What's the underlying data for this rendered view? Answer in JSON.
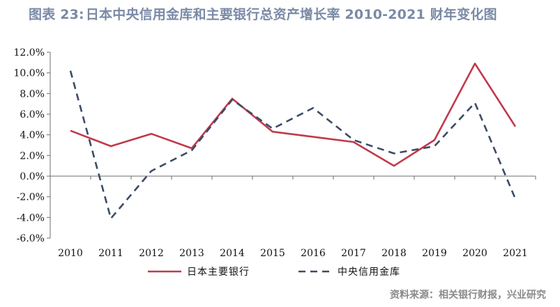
{
  "header": {
    "figure_label": "图表 23:",
    "title_text": "日本中央信用金库和主要银行总资产增长率 2010-2021 财年变化图"
  },
  "source": "资料来源：相关银行财报，兴业研究",
  "chart_data": {
    "type": "line",
    "title": "日本中央信用金库和主要银行总资产增长率 2010-2021 财年变化图",
    "xlabel": "",
    "ylabel": "",
    "categories": [
      "2010",
      "2011",
      "2012",
      "2013",
      "2014",
      "2015",
      "2016",
      "2017",
      "2018",
      "2019",
      "2020",
      "2021"
    ],
    "ylim": [
      -6.0,
      12.0
    ],
    "yticks": [
      -6.0,
      -4.0,
      -2.0,
      0.0,
      2.0,
      4.0,
      6.0,
      8.0,
      10.0,
      12.0
    ],
    "ytick_labels": [
      "-6.0%",
      "-4.0%",
      "-2.0%",
      "0.0%",
      "2.0%",
      "4.0%",
      "6.0%",
      "8.0%",
      "10.0%",
      "12.0%"
    ],
    "grid": false,
    "legend_position": "bottom",
    "series": [
      {
        "name": "日本主要银行",
        "style": "solid",
        "color": "#c0394b",
        "values": [
          4.4,
          2.9,
          4.1,
          2.7,
          7.5,
          4.3,
          3.8,
          3.3,
          1.0,
          3.5,
          10.9,
          4.8
        ]
      },
      {
        "name": "中央信用金库",
        "style": "dashed",
        "color": "#3c4b66",
        "values": [
          10.2,
          -4.1,
          0.5,
          2.5,
          7.4,
          4.6,
          6.6,
          3.5,
          2.2,
          2.9,
          7.1,
          -2.2
        ]
      }
    ]
  }
}
